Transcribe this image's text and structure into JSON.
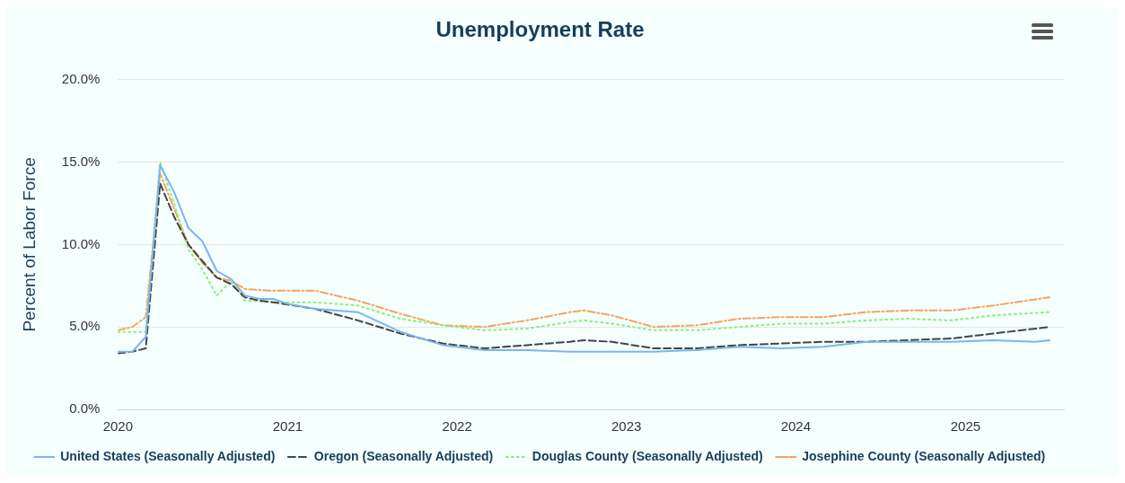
{
  "chart_data": {
    "type": "line",
    "title": "Unemployment Rate",
    "ylabel": "Percent of Labor Force",
    "xlim": [
      "2020-01",
      "2025-08"
    ],
    "xticks": [
      "2020",
      "2021",
      "2022",
      "2023",
      "2024",
      "2025"
    ],
    "ylim": [
      0,
      20
    ],
    "yticks": [
      {
        "value": 0,
        "label": "0.0%"
      },
      {
        "value": 5,
        "label": "5.0%"
      },
      {
        "value": 10,
        "label": "10.0%"
      },
      {
        "value": 15,
        "label": "15.0%"
      },
      {
        "value": 20,
        "label": "20.0%"
      }
    ],
    "grid": "y",
    "legend": "bottom",
    "marker": "none",
    "series": [
      {
        "name": "United States (Seasonally Adjusted)",
        "color": "#7cb5ec",
        "line_style": "solid",
        "x": [
          "2020-01",
          "2020-02",
          "2020-03",
          "2020-04",
          "2020-05",
          "2020-06",
          "2020-07",
          "2020-08",
          "2020-09",
          "2020-10",
          "2020-11",
          "2020-12",
          "2021-01",
          "2021-03",
          "2021-06",
          "2021-09",
          "2021-12",
          "2022-03",
          "2022-06",
          "2022-09",
          "2022-12",
          "2023-03",
          "2023-06",
          "2023-09",
          "2023-12",
          "2024-03",
          "2024-06",
          "2024-09",
          "2024-12",
          "2025-03",
          "2025-06",
          "2025-07"
        ],
        "values": [
          3.5,
          3.5,
          4.4,
          14.8,
          13.2,
          11.0,
          10.2,
          8.4,
          7.9,
          6.9,
          6.7,
          6.7,
          6.4,
          6.1,
          5.9,
          4.7,
          3.9,
          3.6,
          3.6,
          3.5,
          3.5,
          3.5,
          3.6,
          3.8,
          3.7,
          3.8,
          4.1,
          4.1,
          4.1,
          4.2,
          4.1,
          4.2
        ]
      },
      {
        "name": "Oregon (Seasonally Adjusted)",
        "color": "#434348",
        "line_style": "dashed",
        "x": [
          "2020-01",
          "2020-02",
          "2020-03",
          "2020-04",
          "2020-05",
          "2020-06",
          "2020-07",
          "2020-08",
          "2020-09",
          "2020-10",
          "2020-11",
          "2020-12",
          "2021-03",
          "2021-06",
          "2021-09",
          "2021-12",
          "2022-03",
          "2022-06",
          "2022-09",
          "2022-10",
          "2022-12",
          "2023-03",
          "2023-06",
          "2023-09",
          "2023-12",
          "2024-03",
          "2024-06",
          "2024-09",
          "2024-12",
          "2025-03",
          "2025-07"
        ],
        "values": [
          3.4,
          3.5,
          3.7,
          13.7,
          11.7,
          10.0,
          9.0,
          8.0,
          7.6,
          6.8,
          6.6,
          6.5,
          6.1,
          5.4,
          4.6,
          4.0,
          3.7,
          3.9,
          4.1,
          4.2,
          4.1,
          3.7,
          3.7,
          3.9,
          4.0,
          4.1,
          4.1,
          4.2,
          4.3,
          4.6,
          5.0
        ]
      },
      {
        "name": "Douglas County (Seasonally Adjusted)",
        "color": "#90ed7d",
        "line_style": "dotted",
        "x": [
          "2020-01",
          "2020-03",
          "2020-04",
          "2020-05",
          "2020-06",
          "2020-07",
          "2020-08",
          "2020-09",
          "2020-10",
          "2020-12",
          "2021-03",
          "2021-06",
          "2021-09",
          "2021-12",
          "2022-03",
          "2022-06",
          "2022-09",
          "2022-10",
          "2022-12",
          "2023-03",
          "2023-06",
          "2023-09",
          "2023-12",
          "2024-03",
          "2024-06",
          "2024-09",
          "2024-12",
          "2025-03",
          "2025-07"
        ],
        "values": [
          4.7,
          4.7,
          15.0,
          12.5,
          9.7,
          8.5,
          6.9,
          7.8,
          6.6,
          6.5,
          6.5,
          6.3,
          5.5,
          5.1,
          4.8,
          4.9,
          5.3,
          5.4,
          5.2,
          4.8,
          4.8,
          5.0,
          5.2,
          5.2,
          5.4,
          5.5,
          5.4,
          5.7,
          5.9
        ]
      },
      {
        "name": "Josephine County (Seasonally Adjusted)",
        "color": "#f7a35c",
        "line_style": "dashdot",
        "x": [
          "2020-01",
          "2020-02",
          "2020-03",
          "2020-04",
          "2020-05",
          "2020-06",
          "2020-07",
          "2020-08",
          "2020-09",
          "2020-10",
          "2020-12",
          "2021-03",
          "2021-06",
          "2021-09",
          "2021-12",
          "2022-03",
          "2022-06",
          "2022-09",
          "2022-10",
          "2022-12",
          "2023-03",
          "2023-06",
          "2023-09",
          "2023-12",
          "2024-03",
          "2024-06",
          "2024-09",
          "2024-12",
          "2025-03",
          "2025-07"
        ],
        "values": [
          4.8,
          5.0,
          5.6,
          14.3,
          12.2,
          10.0,
          8.9,
          8.0,
          7.8,
          7.3,
          7.2,
          7.2,
          6.6,
          5.8,
          5.1,
          5.0,
          5.4,
          5.9,
          6.0,
          5.7,
          5.0,
          5.1,
          5.5,
          5.6,
          5.6,
          5.9,
          6.0,
          6.0,
          6.3,
          6.8
        ]
      }
    ]
  }
}
